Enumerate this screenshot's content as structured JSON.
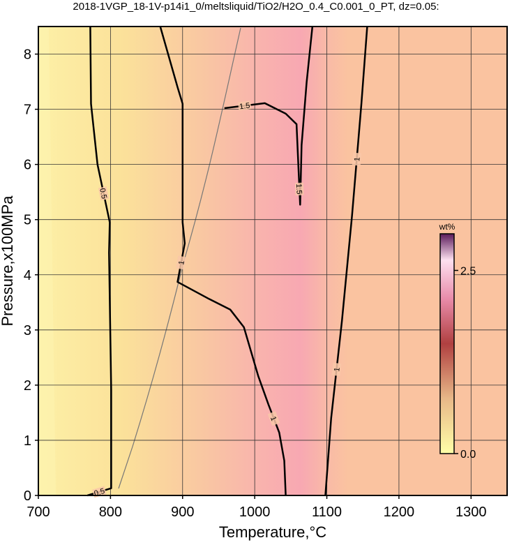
{
  "chart_data": {
    "type": "contour",
    "title": "2018-1VGP_18-1V-p14i1_0/meltsliquid/TiO2/H2O_0.4_C0.001_0_PT, dz=0.05:",
    "x_label": "Temperature,°C",
    "y_label": "Pressure,x100MPa",
    "xlim": [
      700,
      1350
    ],
    "ylim": [
      0,
      8.5
    ],
    "xticks": [
      700,
      800,
      900,
      1000,
      1100,
      1200,
      1300
    ],
    "yticks": [
      0,
      1,
      2,
      3,
      4,
      5,
      6,
      7,
      8
    ],
    "grid": true,
    "series": [
      {
        "name": "0.5",
        "color": "#000000",
        "x": [
          772,
          773,
          782,
          799,
          798,
          801,
          801,
          768
        ],
        "values": [
          8.5,
          7.1,
          6.0,
          4.95,
          4.4,
          1.9,
          0.13,
          0
        ]
      },
      {
        "name": "1",
        "color": "#000000",
        "x": [
          869,
          893,
          900,
          900,
          903,
          893,
          937,
          966,
          985,
          1005,
          1019,
          1034,
          1041,
          1043
        ],
        "values": [
          8.5,
          7.4,
          7.1,
          4.95,
          4.57,
          3.87,
          3.56,
          3.37,
          3.05,
          2.16,
          1.65,
          1.14,
          0.63,
          0
        ]
      },
      {
        "name": "1.5",
        "color": "#000000",
        "x": [
          958,
          1014,
          1043,
          1058,
          1061,
          1063,
          1065,
          1072,
          1080
        ],
        "values": [
          7.02,
          7.11,
          6.92,
          6.73,
          5.84,
          5.27,
          6.35,
          7.49,
          8.5
        ]
      },
      {
        "name": "1",
        "color": "#000000",
        "x": [
          1156,
          1148,
          1135,
          1121,
          1106,
          1098
        ],
        "values": [
          8.5,
          7.11,
          5.08,
          3.17,
          1.4,
          0
        ]
      }
    ],
    "colorbar": {
      "label": "wt%",
      "lim": [
        0,
        3
      ],
      "ticks": [
        {
          "value": 0,
          "label": "0.0"
        },
        {
          "value": 2.5,
          "label": "2.5"
        }
      ]
    }
  }
}
